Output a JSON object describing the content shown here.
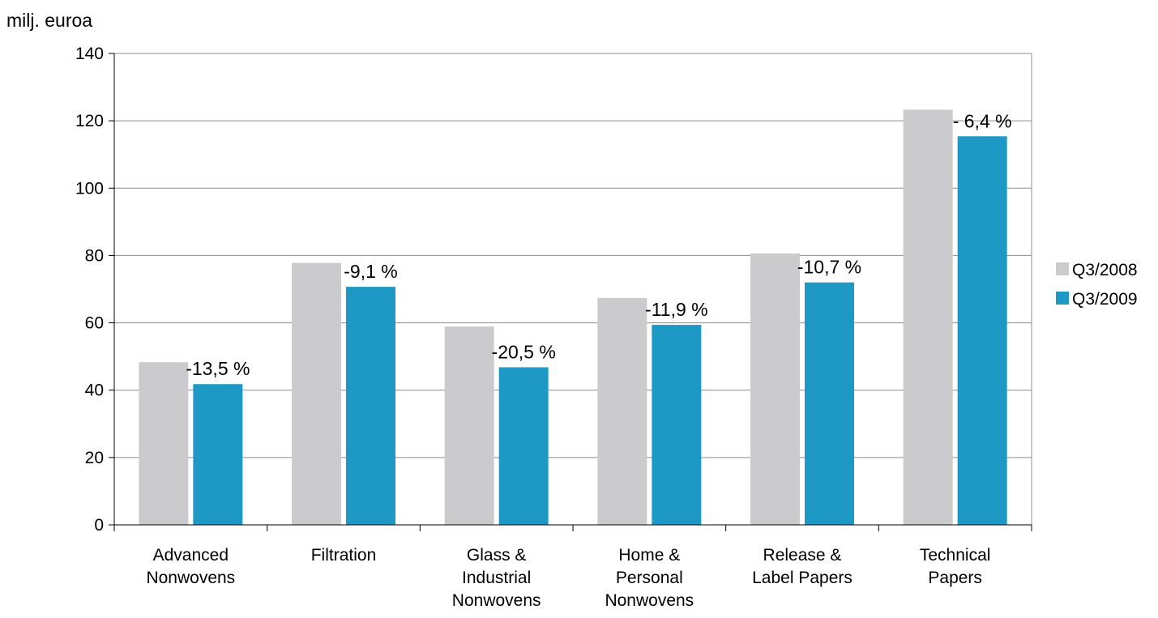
{
  "chart_data": {
    "type": "bar",
    "ylabel": "milj. euroa",
    "ylim": [
      0,
      140
    ],
    "ytick_step": 20,
    "yticks": [
      "0",
      "20",
      "40",
      "60",
      "80",
      "100",
      "120",
      "140"
    ],
    "grid": true,
    "legend_position": "right",
    "categories": [
      [
        "Advanced",
        "Nonwovens"
      ],
      [
        "Filtration"
      ],
      [
        "Glass &",
        "Industrial",
        "Nonwovens"
      ],
      [
        "Home &",
        "Personal",
        "Nonwovens"
      ],
      [
        "Release &",
        "Label Papers"
      ],
      [
        "Technical",
        "Papers"
      ]
    ],
    "series": [
      {
        "name": "Q3/2008",
        "color": "#cbcbcd",
        "values": [
          48.3,
          77.8,
          58.9,
          67.4,
          80.6,
          123.3
        ]
      },
      {
        "name": "Q3/2009",
        "color": "#1e99c6",
        "values": [
          41.8,
          70.7,
          46.8,
          59.4,
          72.0,
          115.4
        ]
      }
    ],
    "data_labels": [
      "-13,5 %",
      "-9,1 %",
      "-20,5 %",
      "-11,9 %",
      "-10,7 %",
      "- 6,4 %"
    ]
  }
}
